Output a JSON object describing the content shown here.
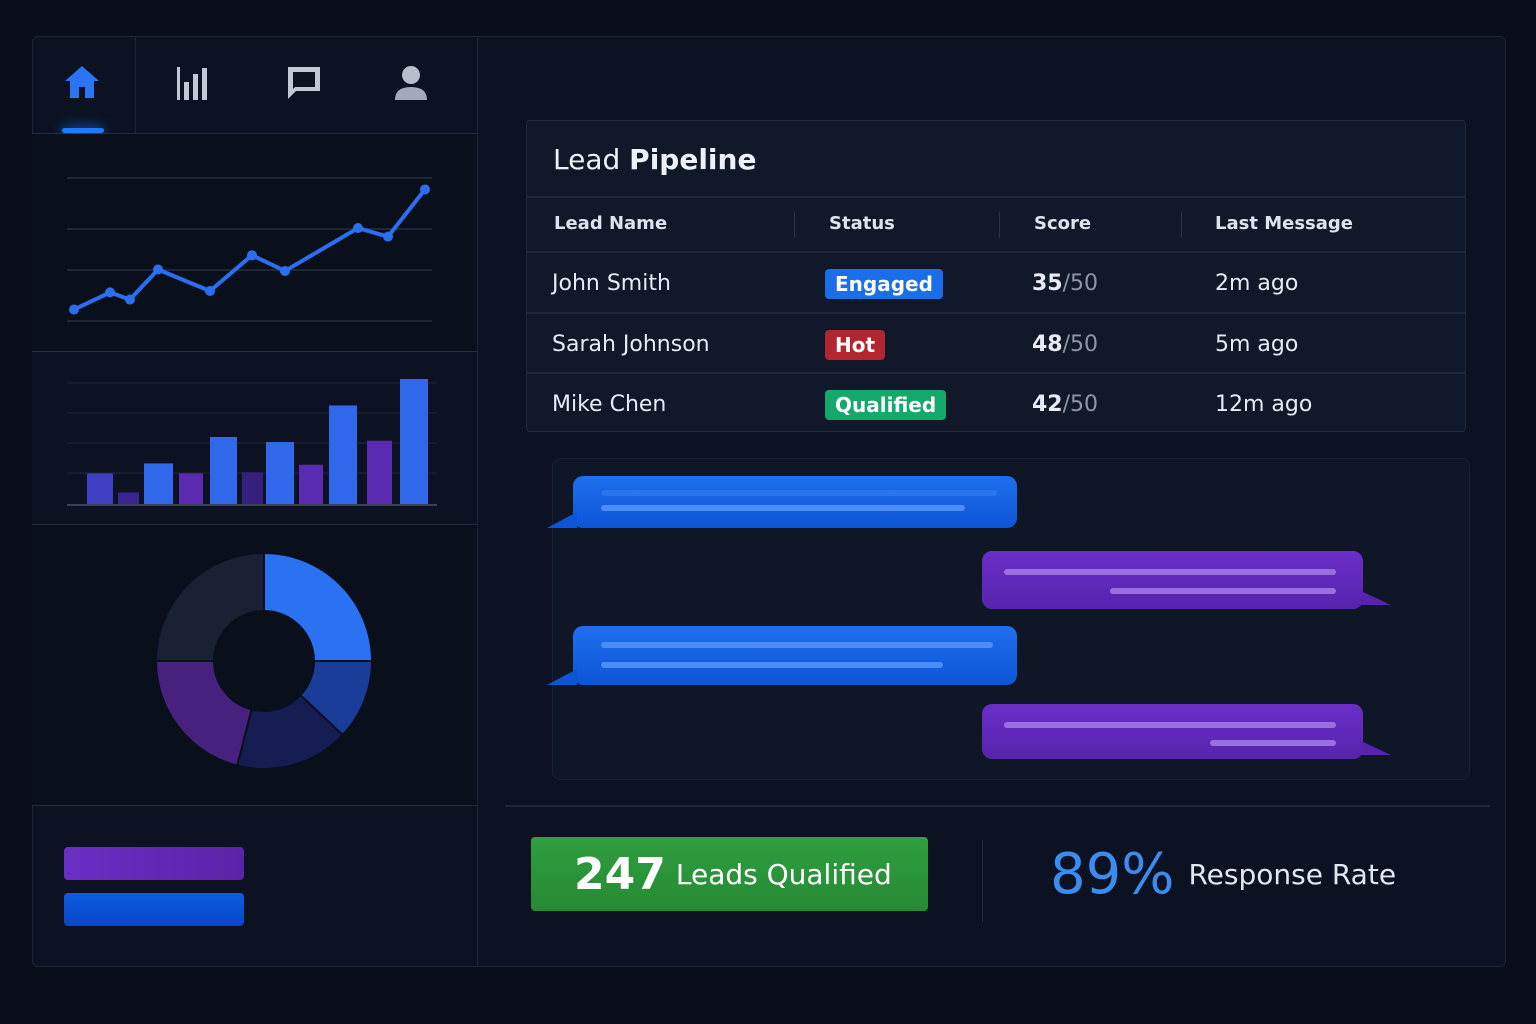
{
  "nav": {
    "items": [
      {
        "icon": "home-icon",
        "active": true
      },
      {
        "icon": "bar-chart-icon"
      },
      {
        "icon": "message-icon"
      },
      {
        "icon": "user-icon"
      }
    ]
  },
  "colors": {
    "accent": "#2a6ff2",
    "purple": "#5f28b8",
    "green": "#2a9a3c",
    "hot": "#b32630",
    "engaged": "#1a6fe8",
    "qualified": "#14a86a",
    "rate": "#3b8cf0"
  },
  "chart_data": [
    {
      "type": "line",
      "values": [
        8,
        20,
        15,
        36,
        21,
        46,
        35,
        65,
        59,
        92
      ],
      "ylim": [
        0,
        100
      ],
      "grid": true
    },
    {
      "type": "bar",
      "values": [
        25,
        10,
        33,
        25,
        54,
        26,
        50,
        32,
        79,
        51,
        100
      ],
      "colors": [
        "#3f3fc4",
        "#3a2490",
        "#2f68ea",
        "#5a2bb0",
        "#2f68ea",
        "#35217d",
        "#2f68ea",
        "#5a2bb0",
        "#2f68ea",
        "#5a2bb0",
        "#2f68ea"
      ],
      "ylim": [
        0,
        100
      ],
      "grid": true
    },
    {
      "type": "pie",
      "values": [
        25,
        12,
        17,
        21,
        25
      ],
      "colors": [
        "#2a72f2",
        "#1a3d9a",
        "#161d52",
        "#46217e",
        "#1a2134"
      ]
    }
  ],
  "table": {
    "title_light": "Lead",
    "title_bold": "Pipeline",
    "headers": [
      "Lead Name",
      "Status",
      "Score",
      "Last Message"
    ],
    "rows": [
      {
        "name": "John Smith",
        "status": "Engaged",
        "score": "35",
        "max": "/50",
        "last": "2m ago",
        "color": "#1a6fe8"
      },
      {
        "name": "Sarah Johnson",
        "status": "Hot",
        "score": "48",
        "max": "/50",
        "last": "5m ago",
        "color": "#b32630"
      },
      {
        "name": "Mike Chen",
        "status": "Qualified",
        "score": "42",
        "max": "/50",
        "last": "12m ago",
        "color": "#14a86a"
      }
    ]
  },
  "stats": {
    "leads_value": "247",
    "leads_label": "Leads Qualified",
    "rate_value": "89%",
    "rate_label": "Response Rate"
  }
}
